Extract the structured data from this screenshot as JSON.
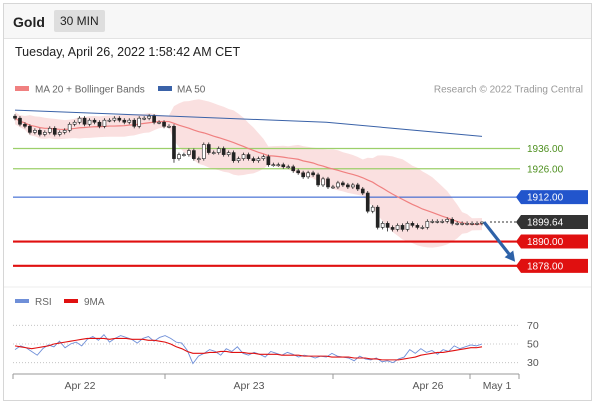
{
  "header": {
    "instrument": "Gold",
    "timeframe": "30 MIN",
    "timestamp": "Tuesday, April 26, 2022 1:58:42 AM CET"
  },
  "legend": {
    "ma20": "MA 20 + Bollinger Bands",
    "ma50": "MA 50",
    "copyright": "Research © 2022 Trading Central"
  },
  "colors": {
    "ma20": "#f08080",
    "ma50": "#3a62a8",
    "resistance": "#9ccf6a",
    "pivot": "#2255cc",
    "support": "#e01010",
    "candle_up": "#ffffff",
    "candle_down": "#222222",
    "rsi": "#6f8fd8",
    "rsi_ma": "#e01010",
    "arrow": "#2e62a8"
  },
  "indicator_legend": {
    "rsi": "RSI",
    "ma9": "9MA"
  },
  "chart_data": [
    {
      "type": "candlestick",
      "title": "Gold",
      "x_labels": [
        "Apr 22",
        "Apr 23",
        "Apr 26",
        "May 1"
      ],
      "ylim": [
        1870,
        1960
      ],
      "price": {
        "open": [
          1952,
          1951,
          1948,
          1947,
          1944,
          1945,
          1943,
          1944,
          1946,
          1943,
          1944,
          1945,
          1948,
          1949,
          1951,
          1948,
          1950,
          1949,
          1947,
          1950,
          1950,
          1951,
          1950,
          1949,
          1950,
          1947,
          1951,
          1951,
          1952,
          1949,
          1949,
          1947,
          1947,
          1931,
          1933,
          1933,
          1935,
          1931,
          1931,
          1938,
          1934,
          1934,
          1936,
          1933,
          1934,
          1930,
          1931,
          1933,
          1931,
          1930,
          1931,
          1932,
          1928,
          1928,
          1928,
          1927,
          1927,
          1925,
          1924,
          1922,
          1924,
          1923,
          1918,
          1921,
          1917,
          1917,
          1919,
          1918,
          1917,
          1918,
          1916,
          1914,
          1905,
          1907,
          1897,
          1899,
          1897,
          1896,
          1898,
          1896,
          1899,
          1898,
          1897,
          1897,
          1900,
          1900,
          1900,
          1900,
          1901,
          1899,
          1899,
          1899,
          1899,
          1899,
          1899
        ],
        "close": [
          1951,
          1948,
          1947,
          1944,
          1945,
          1943,
          1944,
          1946,
          1943,
          1944,
          1945,
          1948,
          1949,
          1951,
          1948,
          1950,
          1949,
          1947,
          1950,
          1950,
          1951,
          1950,
          1949,
          1950,
          1947,
          1951,
          1951,
          1952,
          1949,
          1949,
          1947,
          1947,
          1931,
          1933,
          1933,
          1935,
          1931,
          1931,
          1938,
          1934,
          1934,
          1936,
          1933,
          1934,
          1930,
          1931,
          1933,
          1931,
          1930,
          1931,
          1932,
          1928,
          1928,
          1928,
          1927,
          1927,
          1925,
          1924,
          1922,
          1924,
          1923,
          1918,
          1921,
          1917,
          1917,
          1919,
          1918,
          1917,
          1918,
          1916,
          1914,
          1905,
          1907,
          1897,
          1899,
          1897,
          1896,
          1898,
          1896,
          1899,
          1898,
          1897,
          1897,
          1900,
          1900,
          1900,
          1900,
          1901,
          1899,
          1899,
          1899,
          1899,
          1899,
          1899,
          1899.64
        ],
        "high": [
          1953,
          1952,
          1949,
          1948,
          1946,
          1946,
          1945,
          1947,
          1947,
          1945,
          1946,
          1949,
          1950,
          1952,
          1952,
          1951,
          1951,
          1950,
          1951,
          1951,
          1952,
          1952,
          1951,
          1951,
          1951,
          1952,
          1952,
          1953,
          1953,
          1950,
          1950,
          1948,
          1948,
          1934,
          1934,
          1936,
          1936,
          1932,
          1939,
          1939,
          1935,
          1937,
          1937,
          1935,
          1935,
          1932,
          1934,
          1934,
          1932,
          1932,
          1933,
          1933,
          1929,
          1929,
          1929,
          1928,
          1928,
          1926,
          1925,
          1925,
          1925,
          1924,
          1922,
          1922,
          1918,
          1920,
          1920,
          1919,
          1919,
          1919,
          1917,
          1915,
          1908,
          1908,
          1900,
          1900,
          1898,
          1899,
          1899,
          1900,
          1900,
          1899,
          1898,
          1901,
          1901,
          1901,
          1901,
          1902,
          1902,
          1900,
          1900,
          1900,
          1900,
          1900,
          1900
        ],
        "low": [
          1950,
          1947,
          1946,
          1943,
          1943,
          1942,
          1942,
          1943,
          1942,
          1942,
          1943,
          1944,
          1947,
          1948,
          1947,
          1947,
          1948,
          1946,
          1946,
          1949,
          1949,
          1949,
          1948,
          1948,
          1946,
          1946,
          1950,
          1950,
          1948,
          1948,
          1946,
          1946,
          1929,
          1930,
          1932,
          1932,
          1930,
          1929,
          1930,
          1933,
          1933,
          1933,
          1932,
          1932,
          1929,
          1929,
          1930,
          1930,
          1929,
          1929,
          1930,
          1927,
          1927,
          1927,
          1926,
          1926,
          1924,
          1923,
          1921,
          1921,
          1922,
          1917,
          1917,
          1916,
          1916,
          1916,
          1917,
          1916,
          1916,
          1915,
          1913,
          1904,
          1904,
          1896,
          1896,
          1895,
          1895,
          1895,
          1895,
          1895,
          1897,
          1896,
          1896,
          1896,
          1899,
          1899,
          1899,
          1899,
          1898,
          1898,
          1898,
          1898,
          1898,
          1898,
          1898
        ]
      },
      "ma50": [
        1955,
        1952,
        1949,
        1942
      ],
      "levels": [
        {
          "value": 1936.0,
          "label": "1936.00",
          "kind": "resistance"
        },
        {
          "value": 1926.0,
          "label": "1926.00",
          "kind": "resistance"
        },
        {
          "value": 1912.0,
          "label": "1912.00",
          "kind": "pivot"
        },
        {
          "value": 1899.64,
          "label": "1899.64",
          "kind": "last"
        },
        {
          "value": 1890.0,
          "label": "1890.00",
          "kind": "support"
        },
        {
          "value": 1878.0,
          "label": "1878.00",
          "kind": "support"
        }
      ],
      "projection": {
        "from": 1899.64,
        "to": 1878.0
      }
    },
    {
      "type": "line",
      "title": "RSI",
      "ylim": [
        20,
        80
      ],
      "y_ticks": [
        70,
        50,
        30
      ],
      "series": [
        {
          "name": "RSI",
          "values": [
            44,
            48,
            46,
            42,
            38,
            45,
            49,
            47,
            53,
            46,
            50,
            52,
            48,
            55,
            58,
            54,
            60,
            52,
            56,
            59,
            57,
            55,
            51,
            56,
            58,
            53,
            57,
            59,
            56,
            52,
            51,
            43,
            29,
            37,
            40,
            44,
            42,
            38,
            45,
            42,
            47,
            40,
            38,
            41,
            39,
            36,
            42,
            40,
            38,
            41,
            39,
            36,
            38,
            37,
            35,
            37,
            36,
            40,
            37,
            36,
            35,
            32,
            37,
            34,
            33,
            35,
            31,
            32,
            30,
            34,
            36,
            44,
            40,
            45,
            41,
            43,
            39,
            44,
            42,
            48,
            45,
            47,
            49,
            48,
            50
          ]
        },
        {
          "name": "9MA",
          "values": [
            48,
            47,
            46,
            45,
            46,
            47,
            48,
            50,
            51,
            52,
            53,
            54,
            55,
            56,
            56,
            56,
            56,
            55,
            56,
            56,
            56,
            55,
            55,
            55,
            54,
            54,
            53,
            52,
            50,
            47,
            45,
            42,
            40,
            40,
            40,
            41,
            41,
            42,
            42,
            41,
            41,
            41,
            40,
            40,
            39,
            39,
            39,
            39,
            38,
            38,
            38,
            38,
            37,
            37,
            37,
            37,
            37,
            36,
            36,
            36,
            36,
            35,
            35,
            35,
            34,
            34,
            33,
            33,
            33,
            33,
            34,
            35,
            36,
            38,
            39,
            40,
            41,
            41,
            42,
            43,
            44,
            45,
            46,
            46,
            47
          ]
        }
      ]
    }
  ]
}
